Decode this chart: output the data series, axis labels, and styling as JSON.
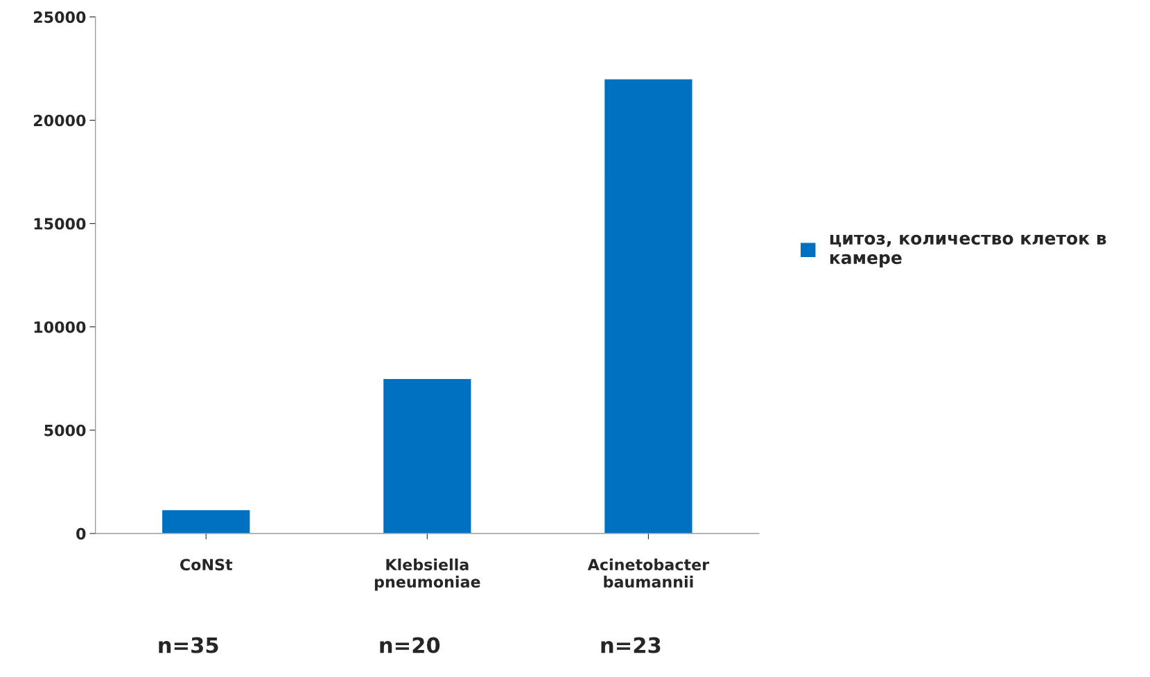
{
  "chart_data": {
    "type": "bar",
    "categories": [
      "CoNSt",
      "Klebsiella\npneumoniae",
      "Acinetobacter\nbaumannii"
    ],
    "series": [
      {
        "name": "цитоз, количество клеток в\nкамере",
        "color": "#0070c0",
        "values": [
          1150,
          7500,
          22000
        ]
      }
    ],
    "ylim": [
      0,
      25000
    ],
    "yticks": [
      0,
      5000,
      10000,
      15000,
      20000,
      25000
    ],
    "grid": false,
    "legend": "right",
    "annotations": [
      "n=35",
      "n=20",
      "n=23"
    ]
  }
}
